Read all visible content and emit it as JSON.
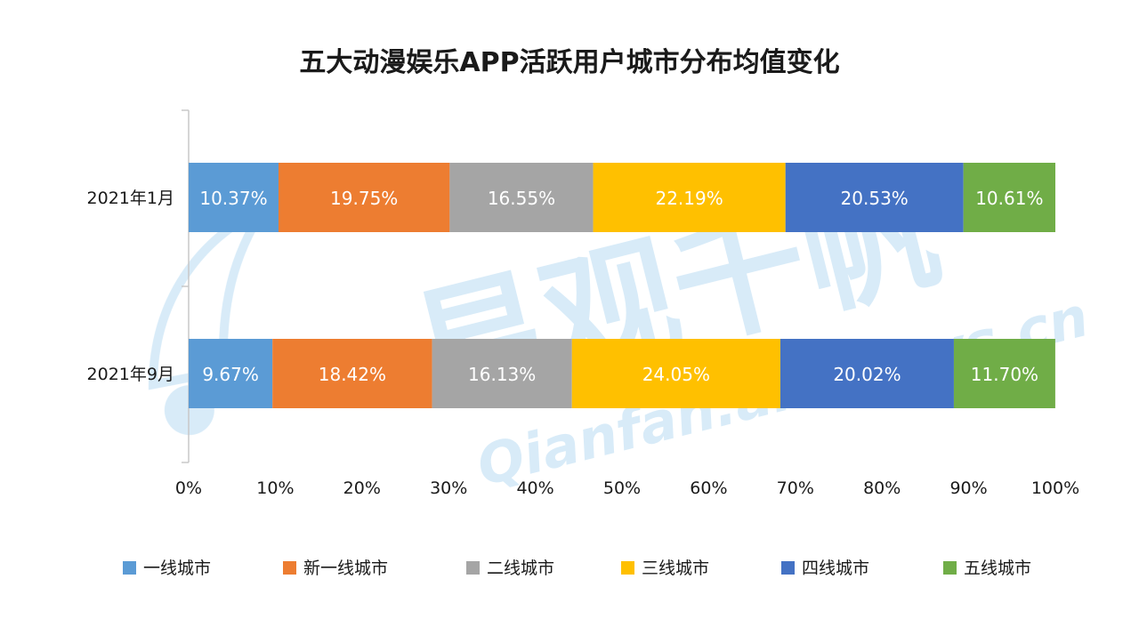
{
  "chart_data": {
    "type": "bar",
    "orientation": "horizontal",
    "stacked": true,
    "percent": true,
    "title": "五大动漫娱乐APP活跃用户城市分布均值变化",
    "categories": [
      "2021年1月",
      "2021年9月"
    ],
    "series": [
      {
        "name": "一线城市",
        "color": "#5B9BD5",
        "values": [
          10.37,
          9.67
        ],
        "labels": [
          "10.37%",
          "9.67%"
        ]
      },
      {
        "name": "新一线城市",
        "color": "#ED7D31",
        "values": [
          19.75,
          18.42
        ],
        "labels": [
          "19.75%",
          "18.42%"
        ]
      },
      {
        "name": "二线城市",
        "color": "#A5A5A5",
        "values": [
          16.55,
          16.13
        ],
        "labels": [
          "16.55%",
          "16.13%"
        ]
      },
      {
        "name": "三线城市",
        "color": "#FFC000",
        "values": [
          22.19,
          24.05
        ],
        "labels": [
          "22.19%",
          "24.05%"
        ]
      },
      {
        "name": "四线城市",
        "color": "#4472C4",
        "values": [
          20.53,
          20.02
        ],
        "labels": [
          "20.53%",
          "20.02%"
        ]
      },
      {
        "name": "五线城市",
        "color": "#70AD47",
        "values": [
          10.61,
          11.7
        ],
        "labels": [
          "10.61%",
          "11.70%"
        ]
      }
    ],
    "xlim": [
      0,
      100
    ],
    "xticks": [
      "0%",
      "10%",
      "20%",
      "30%",
      "40%",
      "50%",
      "60%",
      "70%",
      "80%",
      "90%",
      "100%"
    ],
    "xlabel": "",
    "ylabel": "",
    "grid": false,
    "legend_position": "bottom"
  },
  "watermark": {
    "brand": "易观千帆",
    "site": "Qianfan.analysys.cn"
  }
}
